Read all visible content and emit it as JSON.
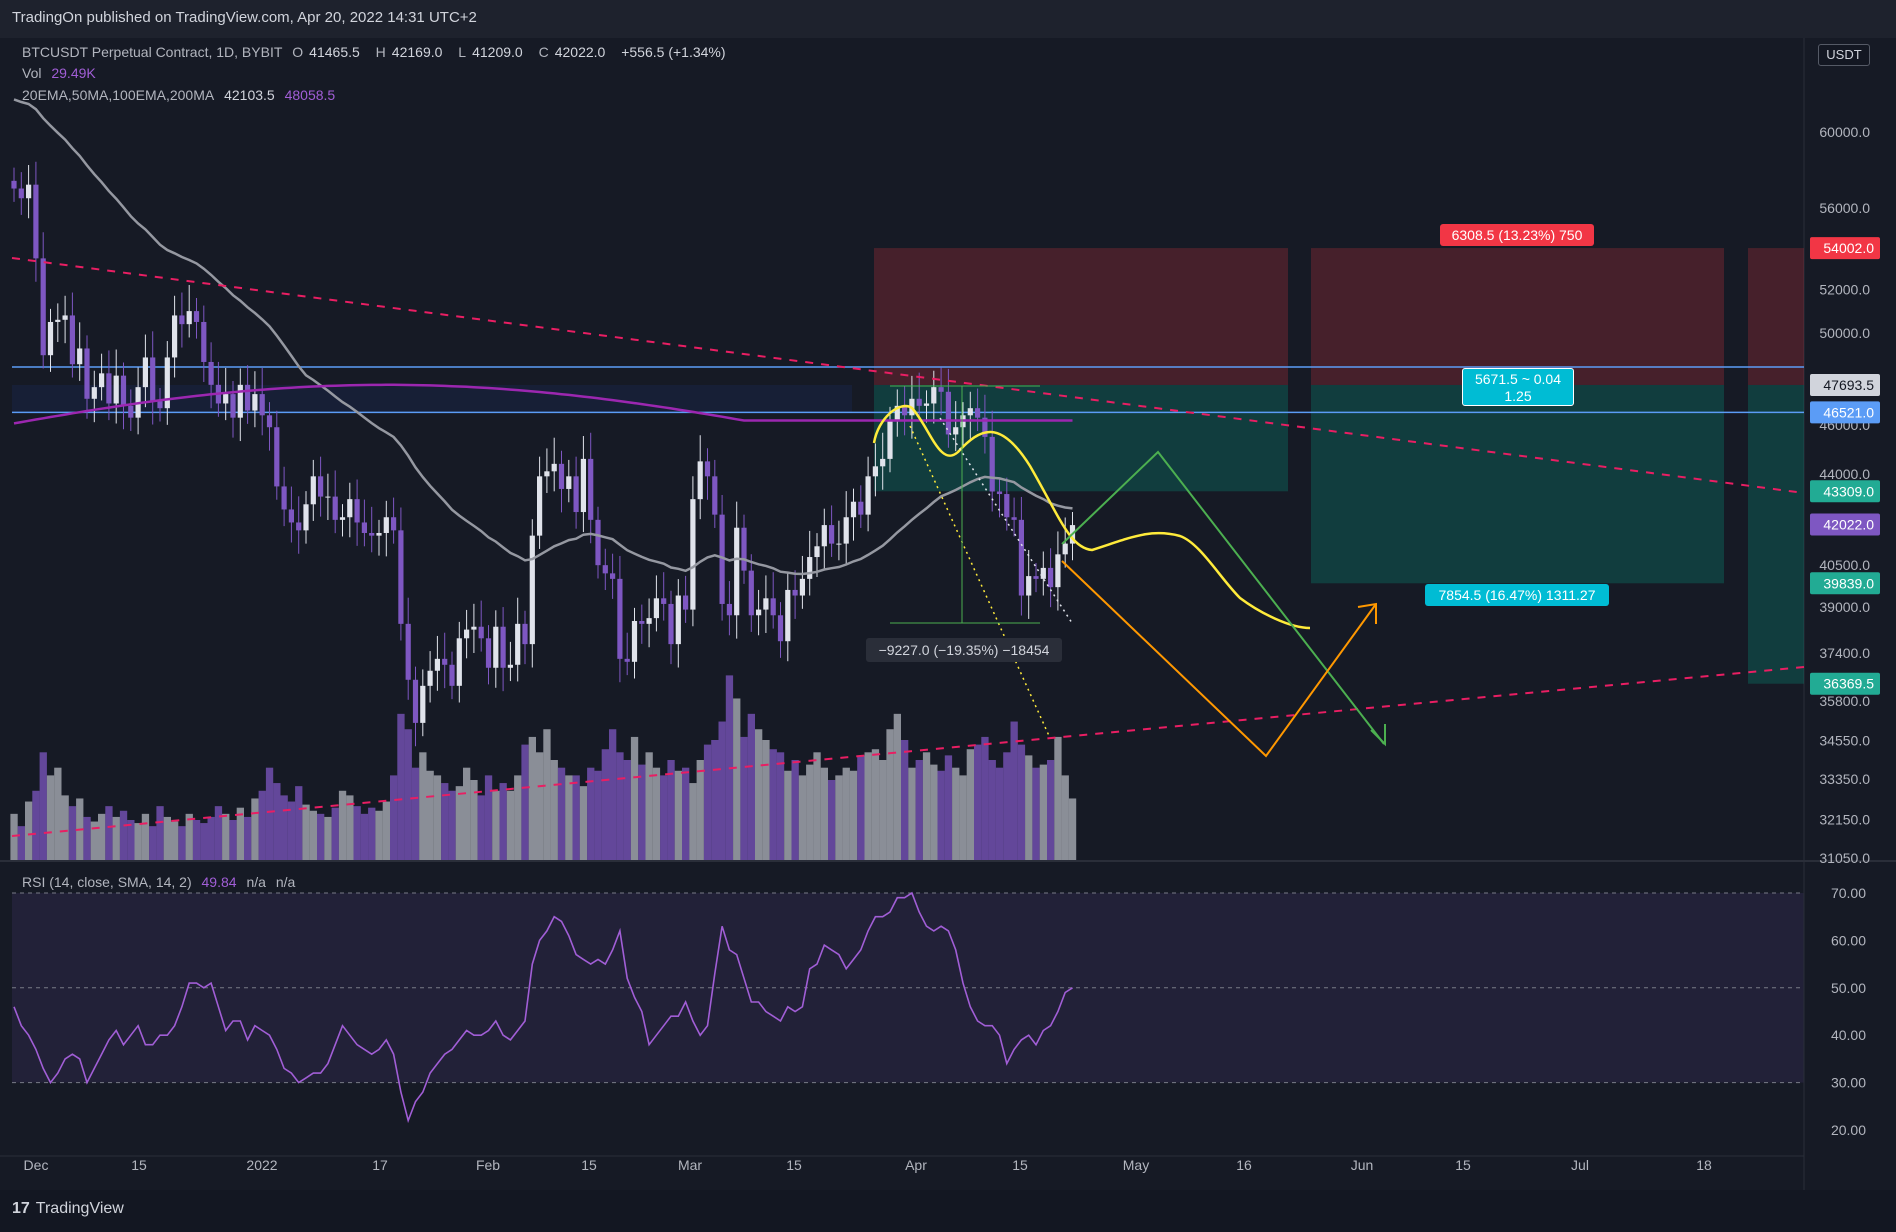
{
  "header": {
    "publisher": "TradingOn published on TradingView.com, Apr 20, 2022 14:31 UTC+2"
  },
  "legend": {
    "symbol": "BTCUSDT Perpetual Contract, 1D, BYBIT",
    "open_label": "O",
    "open": "41465.5",
    "high_label": "H",
    "high": "42169.0",
    "low_label": "L",
    "low": "41209.0",
    "close_label": "C",
    "close": "42022.0",
    "change": "+556.5 (+1.34%)",
    "vol_label": "Vol",
    "vol": "29.49K",
    "ma_label": "20EMA,50MA,100EMA,200MA",
    "ma_val1": "42103.5",
    "ma_val2": "48058.5",
    "rsi_label": "RSI (14, close, SMA, 14, 2)",
    "rsi_val": "49.84",
    "rsi_na1": "n/a",
    "rsi_na2": "n/a"
  },
  "price_axis": {
    "currency": "USDT",
    "ticks": [
      "60000.0",
      "56000.0",
      "52000.0",
      "50000.0",
      "46000.0",
      "44000.0",
      "40500.0",
      "39000.0",
      "37400.0",
      "35800.0",
      "34550.0",
      "33350.0",
      "32150.0",
      "31050.0"
    ],
    "tags": [
      {
        "label": "54002.0",
        "value": 54002,
        "color": "#f23645"
      },
      {
        "label": "47693.5",
        "value": 47693.5,
        "color": "#d1d4dc"
      },
      {
        "label": "46521.0",
        "value": 46521,
        "color": "#5b9cf6"
      },
      {
        "label": "43309.0",
        "value": 43309,
        "color": "#22ab94"
      },
      {
        "label": "42022.0",
        "value": 42022,
        "color": "#7e57c2"
      },
      {
        "label": "39839.0",
        "value": 39839,
        "color": "#22ab94"
      },
      {
        "label": "36369.5",
        "value": 36369.5,
        "color": "#22ab94"
      }
    ]
  },
  "rsi_axis": {
    "ticks": [
      "70.00",
      "60.00",
      "50.00",
      "40.00",
      "30.00",
      "20.00"
    ]
  },
  "time_axis": {
    "labels": [
      "Dec",
      "15",
      "2022",
      "17",
      "Feb",
      "15",
      "Mar",
      "15",
      "Apr",
      "15",
      "May",
      "16",
      "Jun",
      "15",
      "Jul",
      "18"
    ]
  },
  "callouts": {
    "stop": "6308.5 (13.23%) 750",
    "rr_line1": "5671.5 ~ 0.04",
    "rr_line2": "1.25",
    "target": "7854.5 (16.47%) 1311.27",
    "measure": "−9227.0 (−19.35%) −18454"
  },
  "footer": {
    "brand": "TradingView",
    "logo": "17"
  },
  "chart_data": [
    {
      "type": "candlestick",
      "title": "BTCUSDT Perpetual Contract, 1D, BYBIT",
      "y_scale": "log",
      "ylim": [
        31050,
        61000
      ],
      "x": [
        "2021-11-29",
        "2022-04-20"
      ],
      "last": {
        "open": 41465.5,
        "high": 42169.0,
        "low": 41209.0,
        "close": 42022.0
      },
      "closes": [
        57000,
        56500,
        57200,
        53500,
        49000,
        50500,
        50600,
        50800,
        48600,
        49300,
        47100,
        47600,
        48200,
        46900,
        48100,
        46800,
        46300,
        47600,
        48900,
        47000,
        46700,
        48900,
        50800,
        50400,
        51000,
        50500,
        48700,
        47700,
        46900,
        47300,
        46300,
        47700,
        46600,
        47300,
        46400,
        45900,
        43500,
        42600,
        42100,
        41800,
        42800,
        43900,
        43100,
        43100,
        42200,
        42300,
        43000,
        42100,
        41700,
        41600,
        41700,
        42300,
        41800,
        38400,
        36500,
        35100,
        36300,
        36800,
        37200,
        37000,
        36300,
        37900,
        38200,
        38300,
        37900,
        36900,
        38300,
        36900,
        37000,
        38400,
        37700,
        41600,
        43900,
        44100,
        44400,
        43400,
        43900,
        42500,
        44600,
        42200,
        40500,
        40200,
        40000,
        37200,
        37100,
        38500,
        38400,
        38600,
        39300,
        39100,
        37700,
        39400,
        38900,
        43000,
        44500,
        43900,
        42400,
        39100,
        38700,
        41900,
        40300,
        38700,
        38900,
        39300,
        38700,
        37800,
        39600,
        39400,
        40000,
        40800,
        41200,
        42000,
        41300,
        41300,
        42300,
        42900,
        42400,
        43900,
        44300,
        44600,
        46200,
        46800,
        46400,
        47100,
        46800,
        46900,
        47600,
        47400,
        45600,
        45900,
        46400,
        46700,
        46300,
        45500,
        43300,
        43200,
        42300,
        42200,
        39400,
        40100,
        40000,
        40400,
        39700,
        40900,
        41300,
        42000
      ],
      "volume_k": [
        30,
        22,
        38,
        45,
        70,
        55,
        60,
        42,
        35,
        40,
        28,
        25,
        30,
        35,
        28,
        32,
        26,
        24,
        30,
        22,
        35,
        28,
        25,
        22,
        30,
        26,
        24,
        28,
        35,
        30,
        26,
        34,
        28,
        40,
        45,
        60,
        50,
        42,
        38,
        48,
        36,
        32,
        30,
        28,
        34,
        45,
        42,
        35,
        30,
        34,
        32,
        38,
        55,
        95,
        85,
        60,
        70,
        58,
        55,
        50,
        45,
        48,
        60,
        52,
        42,
        55,
        45,
        50,
        45,
        55,
        75,
        80,
        70,
        85,
        65,
        60,
        55,
        55,
        48,
        60,
        58,
        72,
        85,
        70,
        65,
        80,
        62,
        70,
        60,
        55,
        65,
        58,
        60,
        50,
        65,
        75,
        78,
        90,
        120,
        105,
        80,
        95,
        85,
        78,
        72,
        70,
        58,
        65,
        55,
        62,
        70,
        60,
        52,
        55,
        60,
        58,
        68,
        70,
        72,
        65,
        85,
        95,
        78,
        60,
        65,
        70,
        62,
        58,
        68,
        60,
        55,
        72,
        75,
        80,
        65,
        60,
        70,
        90,
        75,
        68,
        60,
        62,
        65,
        80,
        55,
        40
      ],
      "series": [
        {
          "name": "20EMA",
          "color": "#a15ed6"
        },
        {
          "name": "50MA",
          "color": "#787b86"
        },
        {
          "name": "100EMA",
          "color": "#787b86"
        },
        {
          "name": "200MA",
          "color": "#9c27b0"
        }
      ],
      "levels": [
        {
          "price": 54002.0,
          "kind": "stop"
        },
        {
          "price": 47693.5,
          "kind": "entry"
        },
        {
          "price": 46521.0,
          "kind": "horizontal"
        },
        {
          "price": 43309.0,
          "kind": "entry-box-bottom"
        },
        {
          "price": 39839.0,
          "kind": "target"
        },
        {
          "price": 36369.5,
          "kind": "target-2"
        }
      ]
    },
    {
      "type": "line",
      "title": "RSI (14, close, SMA, 14, 2)",
      "ylim": [
        17,
        72
      ],
      "bands": [
        30,
        50,
        70
      ],
      "values": [
        46,
        42,
        40,
        37,
        33,
        30,
        32,
        35,
        36,
        35,
        30,
        33,
        36,
        39,
        41,
        38,
        40,
        42,
        38,
        38,
        40,
        40,
        42,
        46,
        51,
        51,
        50,
        51,
        46,
        41,
        43,
        43,
        39,
        42,
        41,
        40,
        37,
        33,
        32,
        30,
        31,
        32,
        32,
        34,
        38,
        42,
        40,
        38,
        37,
        36,
        37,
        39,
        36,
        28,
        22,
        26,
        28,
        32,
        34,
        36,
        37,
        39,
        41,
        40,
        40,
        41,
        43,
        40,
        39,
        41,
        43,
        55,
        60,
        62,
        65,
        64,
        61,
        57,
        56,
        55,
        56,
        55,
        58,
        62,
        52,
        48,
        45,
        38,
        40,
        42,
        44,
        44,
        47,
        43,
        40,
        42,
        53,
        63,
        58,
        57,
        52,
        47,
        47,
        45,
        44,
        43,
        46,
        45,
        46,
        54,
        55,
        59,
        58,
        57,
        54,
        56,
        58,
        62,
        65,
        65,
        66,
        69,
        69,
        70,
        66,
        63,
        62,
        63,
        62,
        58,
        51,
        46,
        43,
        42,
        42,
        40,
        34,
        37,
        39,
        40,
        38,
        41,
        42,
        45,
        49,
        50
      ]
    }
  ]
}
